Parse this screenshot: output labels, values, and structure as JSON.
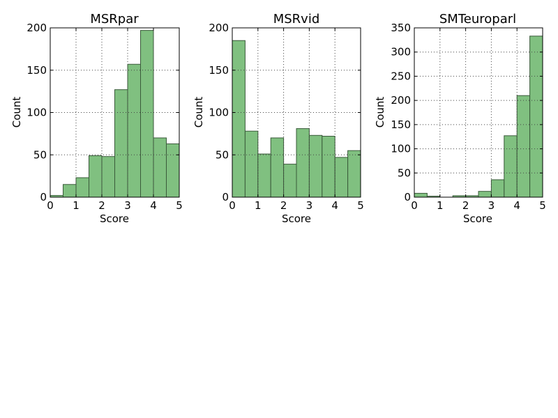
{
  "style": {
    "bar_fill": "#80c080",
    "bar_stroke": "#3a5a3a",
    "grid_color": "#444444"
  },
  "chart_data": [
    {
      "type": "bar",
      "title": "MSRpar",
      "xlabel": "Score",
      "ylabel": "Count",
      "xlim": [
        0,
        5
      ],
      "ylim": [
        0,
        200
      ],
      "xticks": [
        0,
        1,
        2,
        3,
        4,
        5
      ],
      "yticks": [
        0,
        50,
        100,
        150,
        200
      ],
      "grid": true,
      "bin_edges": [
        0,
        0.5,
        1,
        1.5,
        2,
        2.5,
        3,
        3.5,
        4,
        4.5,
        5
      ],
      "values": [
        2,
        15,
        23,
        49,
        48,
        127,
        157,
        197,
        70,
        63
      ]
    },
    {
      "type": "bar",
      "title": "MSRvid",
      "xlabel": "Score",
      "ylabel": "Count",
      "xlim": [
        0,
        5
      ],
      "ylim": [
        0,
        200
      ],
      "xticks": [
        0,
        1,
        2,
        3,
        4,
        5
      ],
      "yticks": [
        0,
        50,
        100,
        150,
        200
      ],
      "grid": true,
      "bin_edges": [
        0,
        0.5,
        1,
        1.5,
        2,
        2.5,
        3,
        3.5,
        4,
        4.5,
        5
      ],
      "values": [
        185,
        78,
        51,
        70,
        39,
        81,
        73,
        72,
        47,
        55
      ]
    },
    {
      "type": "bar",
      "title": "SMTeuroparl",
      "xlabel": "Score",
      "ylabel": "Count",
      "xlim": [
        0,
        5
      ],
      "ylim": [
        0,
        350
      ],
      "xticks": [
        0,
        1,
        2,
        3,
        4,
        5
      ],
      "yticks": [
        0,
        50,
        100,
        150,
        200,
        250,
        300,
        350
      ],
      "grid": true,
      "bin_edges": [
        0,
        0.5,
        1,
        1.5,
        2,
        2.5,
        3,
        3.5,
        4,
        4.5,
        5
      ],
      "values": [
        8,
        2,
        0,
        3,
        3,
        12,
        36,
        127,
        210,
        333
      ]
    }
  ]
}
